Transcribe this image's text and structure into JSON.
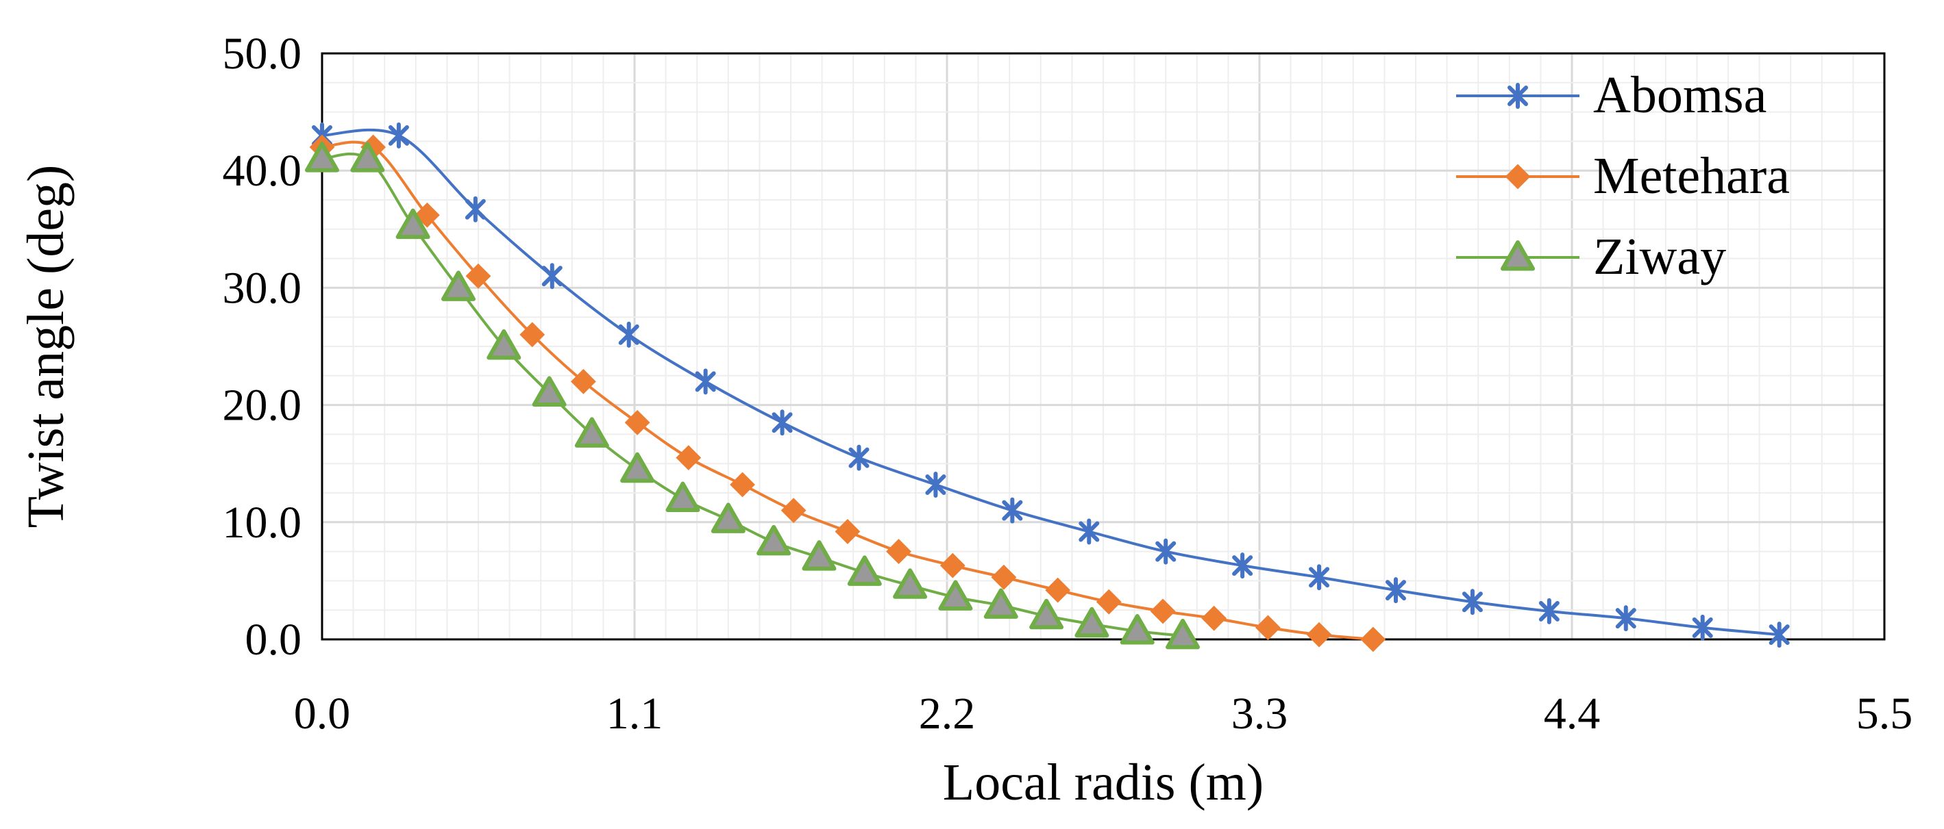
{
  "chart_data": {
    "type": "line",
    "title": "",
    "xlabel": "Local radis (m)",
    "ylabel": "Twist angle (deg)",
    "xlim": [
      0,
      5.5
    ],
    "ylim": [
      0,
      50
    ],
    "xticks": [
      "0.0",
      "1.1",
      "2.2",
      "3.3",
      "4.4",
      "5.5"
    ],
    "yticks": [
      "0.0",
      "10.0",
      "20.0",
      "30.0",
      "40.0",
      "50.0"
    ],
    "grid": true,
    "legend_position": "top-right",
    "series": [
      {
        "name": "Abomsa",
        "color": "#4472C4",
        "marker": "star",
        "x": [
          0.0,
          0.27,
          0.54,
          0.81,
          1.08,
          1.35,
          1.62,
          1.89,
          2.16,
          2.43,
          2.7,
          2.97,
          3.24,
          3.51,
          3.78,
          4.05,
          4.32,
          4.59,
          4.86,
          5.13
        ],
        "y": [
          43.0,
          43.0,
          36.7,
          31.0,
          26.0,
          22.0,
          18.5,
          15.5,
          13.2,
          11.0,
          9.2,
          7.5,
          6.3,
          5.3,
          4.2,
          3.2,
          2.4,
          1.8,
          1.0,
          0.4
        ]
      },
      {
        "name": "Metehara",
        "color": "#ED7D31",
        "marker": "diamond",
        "x": [
          0.0,
          0.18,
          0.37,
          0.55,
          0.74,
          0.92,
          1.11,
          1.29,
          1.48,
          1.66,
          1.85,
          2.03,
          2.22,
          2.4,
          2.59,
          2.77,
          2.96,
          3.14,
          3.33,
          3.51,
          3.7
        ],
        "y": [
          42.0,
          42.0,
          36.2,
          31.0,
          26.0,
          22.0,
          18.5,
          15.5,
          13.2,
          11.0,
          9.2,
          7.5,
          6.3,
          5.3,
          4.2,
          3.2,
          2.4,
          1.8,
          1.0,
          0.4,
          0.0
        ]
      },
      {
        "name": "Ziway",
        "color": "#70AD47",
        "marker": "triangle",
        "x": [
          0.0,
          0.16,
          0.32,
          0.48,
          0.64,
          0.8,
          0.95,
          1.11,
          1.27,
          1.43,
          1.59,
          1.75,
          1.91,
          2.07,
          2.23,
          2.39,
          2.55,
          2.71,
          2.87,
          3.03
        ],
        "y": [
          41.0,
          41.0,
          35.3,
          30.0,
          25.0,
          21.0,
          17.5,
          14.5,
          12.0,
          10.2,
          8.3,
          7.0,
          5.7,
          4.6,
          3.6,
          2.9,
          2.0,
          1.3,
          0.7,
          0.3
        ]
      }
    ]
  }
}
